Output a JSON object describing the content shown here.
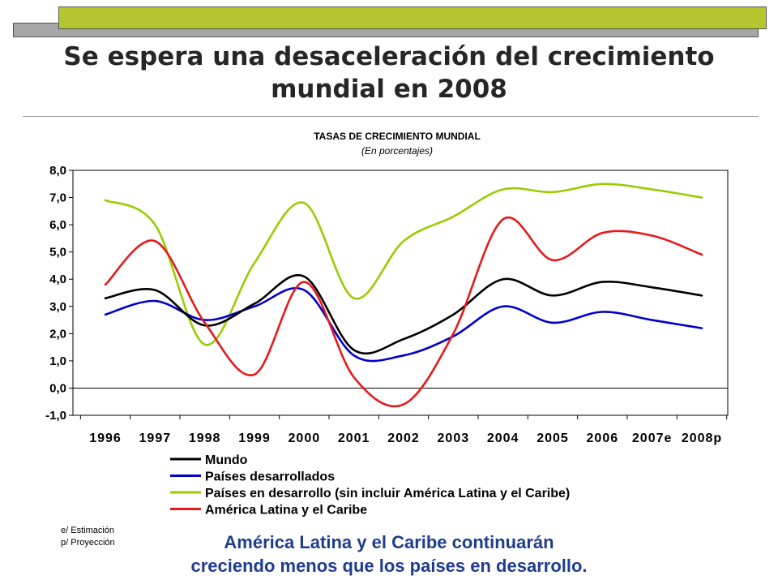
{
  "slide": {
    "title": "Se espera una desaceleración del crecimiento mundial en 2008",
    "notes": [
      "e/ Estimación",
      "p/ Proyección"
    ],
    "footer": [
      "América Latina y el Caribe continuarán",
      "creciendo menos que los países en desarrollo."
    ]
  },
  "chart_data": {
    "type": "line",
    "title": "TASAS DE CRECIMIENTO MUNDIAL",
    "subtitle": "(En porcentajes)",
    "categories": [
      "1996",
      "1997",
      "1998",
      "1999",
      "2000",
      "2001",
      "2002",
      "2003",
      "2004",
      "2005",
      "2006",
      "2007e",
      "2008p"
    ],
    "y_tick_labels": [
      "8,0",
      "7,0",
      "6,0",
      "5,0",
      "4,0",
      "3,0",
      "2,0",
      "1,0",
      "0,0",
      "-1,0"
    ],
    "ylim": [
      -1,
      8
    ],
    "grid": false,
    "legend_position": "bottom",
    "series": [
      {
        "name": "Mundo",
        "color": "#000000",
        "values": [
          3.3,
          3.6,
          2.3,
          3.1,
          4.1,
          1.4,
          1.8,
          2.7,
          4.0,
          3.4,
          3.9,
          3.7,
          3.4
        ]
      },
      {
        "name": "Países desarrollados",
        "color": "#0000cc",
        "values": [
          2.7,
          3.2,
          2.5,
          3.0,
          3.6,
          1.2,
          1.2,
          1.9,
          3.0,
          2.4,
          2.8,
          2.5,
          2.2
        ]
      },
      {
        "name": "Países en desarrollo (sin incluir América Latina y el Caribe)",
        "color": "#99cc00",
        "values": [
          6.9,
          6.0,
          1.6,
          4.6,
          6.8,
          3.3,
          5.4,
          6.3,
          7.3,
          7.2,
          7.5,
          7.3,
          7.0
        ]
      },
      {
        "name": "América Latina y el Caribe",
        "color": "#e41a1c",
        "values": [
          3.8,
          5.4,
          2.4,
          0.5,
          3.9,
          0.4,
          -0.6,
          2.0,
          6.2,
          4.7,
          5.7,
          5.6,
          4.9
        ]
      }
    ]
  }
}
